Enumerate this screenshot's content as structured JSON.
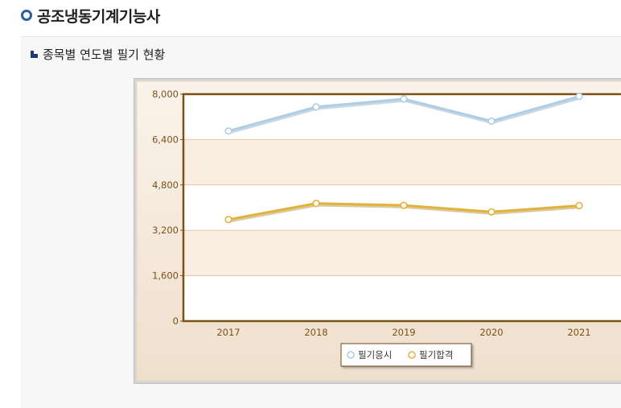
{
  "page": {
    "title": "공조냉동기계기능사",
    "subtitle": "종목별 연도별 필기 현황"
  },
  "colors": {
    "title_bullet": "#2a5f9e",
    "series_apply": "#aecde6",
    "series_pass": "#e2b23c",
    "axis_text": "#7a5219",
    "plot_border": "#7a5219"
  },
  "chart_data": {
    "type": "line",
    "title": "",
    "xlabel": "",
    "ylabel": "",
    "categories": [
      "2017",
      "2018",
      "2019",
      "2020",
      "2021"
    ],
    "ylim": [
      0,
      8000
    ],
    "yticks": [
      0,
      1600,
      3200,
      4800,
      6400,
      8000
    ],
    "ytick_labels": [
      "0",
      "1,600",
      "3,200",
      "4,800",
      "6,400",
      "8,000"
    ],
    "grid": true,
    "legend_position": "bottom",
    "series": [
      {
        "name": "필기응시",
        "values": [
          6700,
          7550,
          7830,
          7050,
          7920
        ]
      },
      {
        "name": "필기합격",
        "values": [
          3580,
          4150,
          4080,
          3850,
          4070
        ]
      }
    ]
  }
}
